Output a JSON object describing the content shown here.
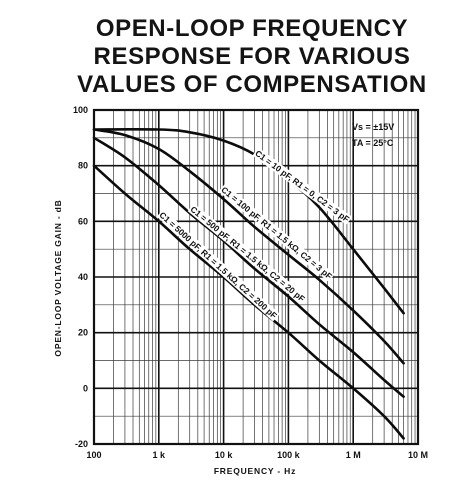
{
  "chart_data": {
    "type": "line",
    "title_lines": [
      "OPEN-LOOP FREQUENCY",
      "RESPONSE FOR VARIOUS",
      "VALUES OF COMPENSATION"
    ],
    "xlabel": "FREQUENCY - Hz",
    "ylabel": "OPEN-LOOP VOLTAGE GAIN - dB",
    "x_scale": "log",
    "xlim": [
      100,
      10000000
    ],
    "ylim": [
      -20,
      100
    ],
    "x_ticks": [
      {
        "value": 100,
        "label": "100"
      },
      {
        "value": 1000,
        "label": "1 k"
      },
      {
        "value": 10000,
        "label": "10 k"
      },
      {
        "value": 100000,
        "label": "100 k"
      },
      {
        "value": 1000000,
        "label": "1 M"
      },
      {
        "value": 10000000,
        "label": "10 M"
      }
    ],
    "y_ticks": [
      {
        "value": 100,
        "label": "100"
      },
      {
        "value": 80,
        "label": "80"
      },
      {
        "value": 60,
        "label": "60"
      },
      {
        "value": 40,
        "label": "40"
      },
      {
        "value": 20,
        "label": "20"
      },
      {
        "value": 0,
        "label": "0"
      },
      {
        "value": -20,
        "label": "-20"
      }
    ],
    "grid": true,
    "conditions": [
      "Vs = ±15V",
      "TA = 25°C"
    ],
    "series": [
      {
        "name": "C1 = 10 pF, R1 = 0, C2 = 3 pF",
        "x": [
          100,
          1000,
          3000,
          10000,
          30000,
          100000,
          300000,
          1000000,
          3000000,
          6000000
        ],
        "y": [
          93,
          93,
          92,
          89,
          84,
          75,
          65,
          50,
          36,
          27
        ]
      },
      {
        "name": "C1 = 100 pF, R1 = 1.5 kΩ, C2 = 3 pF",
        "x": [
          100,
          300,
          1000,
          3000,
          10000,
          30000,
          100000,
          300000,
          1000000,
          3000000,
          6000000
        ],
        "y": [
          93,
          91,
          86,
          78,
          68,
          58,
          48,
          39,
          28,
          17,
          9
        ]
      },
      {
        "name": "C1 = 500 pF, R1 = 1.5 kΩ, C2 = 20 pF",
        "x": [
          100,
          300,
          1000,
          3000,
          10000,
          30000,
          100000,
          300000,
          1000000,
          3000000,
          6000000
        ],
        "y": [
          90,
          83,
          73,
          63,
          53,
          43,
          33,
          23,
          13,
          3,
          -3
        ]
      },
      {
        "name": "C1 = 5000 pF, R1 = 1.5 kΩ, C2 = 200 pF",
        "x": [
          100,
          300,
          1000,
          3000,
          10000,
          30000,
          100000,
          300000,
          1000000,
          3000000,
          6000000
        ],
        "y": [
          80,
          70,
          60,
          50,
          40,
          30,
          20,
          10,
          0,
          -10,
          -18
        ]
      }
    ]
  }
}
